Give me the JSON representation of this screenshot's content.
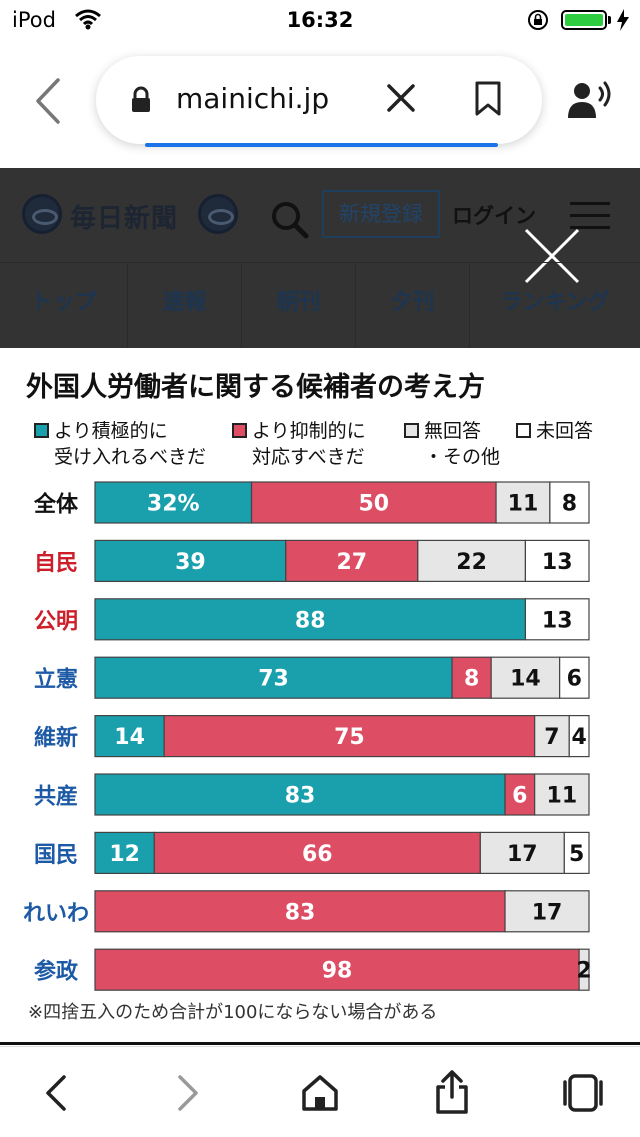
{
  "status_bar": {
    "carrier": "iPod",
    "time": "16:32"
  },
  "browser": {
    "url": "mainichi.jp"
  },
  "site": {
    "logo_text": "毎日新聞",
    "register_label": "新規登録",
    "login_label": "ログイン",
    "nav_tabs": [
      "トップ",
      "速報",
      "朝刊",
      "夕刊",
      "ランキング"
    ]
  },
  "colors": {
    "positive": "#1aa0ad",
    "negative": "#dd4d64",
    "no_answer": "#e6e6e6",
    "unanswered": "#ffffff",
    "ruling_party_label": "#cc1f2a",
    "opposition_label": "#1d5aa6"
  },
  "legend": {
    "positive": "より積極的に\n受け入れるべきだ",
    "negative": "より抑制的に\n対応すべきだ",
    "no_answer": "無回答\n・その他",
    "unanswered": "未回答"
  },
  "footnote": "※四捨五入のため合計が100にならない場合がある",
  "chart_data": {
    "type": "bar",
    "orientation": "horizontal",
    "stacked": true,
    "title": "外国人労働者に関する候補者の考え方",
    "categories": [
      "全体",
      "自民",
      "公明",
      "立憲",
      "維新",
      "共産",
      "国民",
      "れいわ",
      "参政"
    ],
    "category_colors": [
      "#111111",
      "#cc1f2a",
      "#cc1f2a",
      "#1d5aa6",
      "#1d5aa6",
      "#1d5aa6",
      "#1d5aa6",
      "#1d5aa6",
      "#1d5aa6"
    ],
    "series": [
      {
        "name": "より積極的に受け入れるべきだ",
        "color": "#1aa0ad",
        "values": [
          32,
          39,
          88,
          73,
          14,
          83,
          12,
          0,
          0
        ]
      },
      {
        "name": "より抑制的に対応すべきだ",
        "color": "#dd4d64",
        "values": [
          50,
          27,
          0,
          8,
          75,
          6,
          66,
          83,
          98
        ]
      },
      {
        "name": "無回答・その他",
        "color": "#e6e6e6",
        "values": [
          11,
          22,
          0,
          14,
          7,
          11,
          17,
          17,
          2
        ]
      },
      {
        "name": "未回答",
        "color": "#ffffff",
        "values": [
          8,
          13,
          13,
          6,
          4,
          0,
          5,
          0,
          0
        ]
      }
    ],
    "value_suffix_first": "%",
    "xlim": [
      0,
      100
    ]
  }
}
